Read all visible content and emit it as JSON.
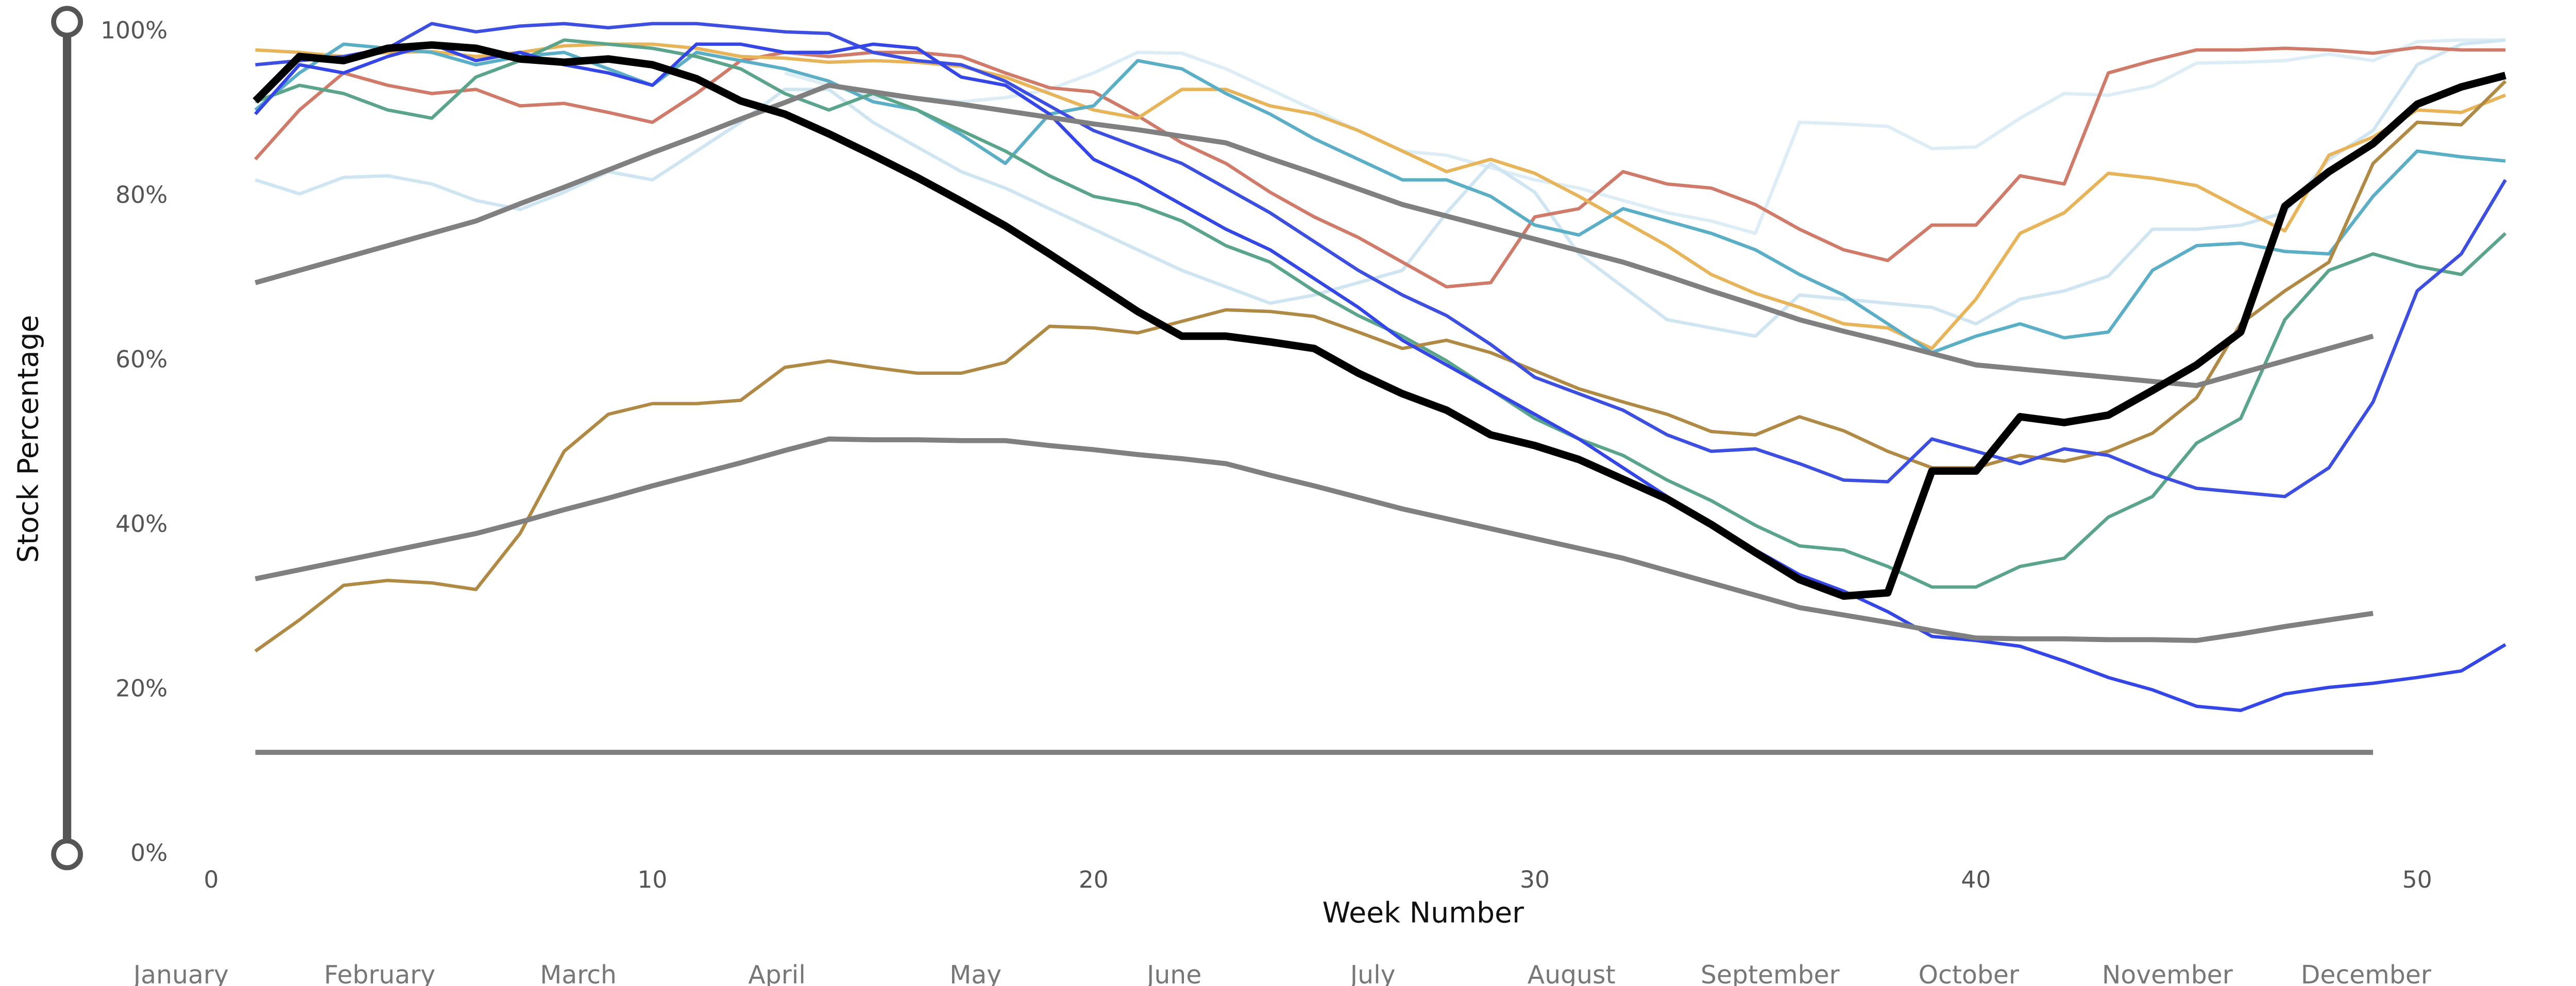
{
  "chart_data": {
    "type": "line",
    "x_axis_label": "Week Number",
    "y_axis_label": "Stock Percentage",
    "month_labels": [
      "January",
      "February",
      "March",
      "April",
      "May",
      "June",
      "July",
      "August",
      "September",
      "October",
      "November",
      "December"
    ],
    "xlim": [
      0,
      53
    ],
    "ylim": [
      0,
      100
    ],
    "xticks": [
      0,
      10,
      20,
      30,
      40,
      50
    ],
    "yticks": [
      {
        "value": 0,
        "label": "0%"
      },
      {
        "value": 20,
        "label": "20%"
      },
      {
        "value": 40,
        "label": "40%"
      },
      {
        "value": 60,
        "label": "60%"
      },
      {
        "value": 80,
        "label": "80%"
      },
      {
        "value": 100,
        "label": "100%"
      }
    ],
    "grid": false,
    "x": [
      1,
      2,
      3,
      4,
      5,
      6,
      7,
      8,
      9,
      10,
      11,
      12,
      13,
      14,
      15,
      16,
      17,
      18,
      19,
      20,
      21,
      22,
      23,
      24,
      25,
      26,
      27,
      28,
      29,
      30,
      31,
      32,
      33,
      34,
      35,
      36,
      37,
      38,
      39,
      40,
      41,
      42,
      43,
      44,
      45,
      46,
      47,
      48,
      49,
      50,
      51,
      52
    ],
    "series": [
      {
        "color": "#dcedf6",
        "width": 2,
        "values": [
          null,
          null,
          null,
          null,
          null,
          null,
          null,
          null,
          null,
          null,
          null,
          null,
          95,
          93.5,
          92,
          92,
          91.5,
          92,
          93,
          95,
          97.5,
          97.4,
          95.5,
          93,
          90.5,
          88,
          85.5,
          85,
          83.5,
          82,
          81,
          79.5,
          78,
          77,
          75.5,
          89,
          88.8,
          88.5,
          85.8,
          86,
          89.5,
          92.5,
          92.3,
          93.4,
          96.2,
          96.3,
          96.5,
          97.3,
          96.5,
          98.8,
          99,
          99
        ]
      },
      {
        "color": "#cfe6f2",
        "width": 2,
        "values": [
          82,
          80.3,
          82.3,
          82.5,
          81.5,
          79.5,
          78.4,
          80.5,
          83,
          82,
          85.5,
          89,
          93,
          93,
          89,
          86,
          83,
          81,
          78.5,
          76,
          73.5,
          71,
          69,
          67,
          68,
          69.5,
          71,
          78,
          84,
          80.5,
          73,
          69,
          65,
          64,
          63,
          68,
          67.5,
          67,
          66.5,
          64.5,
          67.5,
          68.5,
          70.3,
          76,
          76,
          76.5,
          78,
          84.5,
          88,
          96,
          98.5,
          99
        ]
      },
      {
        "color": "#d07a6a",
        "width": 2,
        "values": [
          84.5,
          90.5,
          95,
          93.5,
          92.5,
          93,
          91,
          91.3,
          90.2,
          89,
          92.5,
          96.5,
          97.5,
          97,
          97.5,
          97.5,
          97,
          95,
          93.2,
          92.7,
          89.8,
          86.5,
          84,
          80.5,
          77.5,
          75,
          72,
          69,
          69.5,
          77.5,
          78.5,
          83,
          81.5,
          81,
          79,
          76,
          73.5,
          72.2,
          76.5,
          76.5,
          82.5,
          81.5,
          95,
          96.5,
          97.8,
          97.8,
          98,
          97.8,
          97.4,
          98.1,
          97.8,
          97.8
        ]
      },
      {
        "color": "#e7b45a",
        "width": 2,
        "values": [
          97.8,
          97.5,
          97,
          97.5,
          97.6,
          97,
          97.5,
          98.3,
          98.5,
          98.5,
          98,
          97,
          96.8,
          96.3,
          96.5,
          96.3,
          95.8,
          94.5,
          92.5,
          90.5,
          89.5,
          93,
          93,
          91,
          90,
          88,
          85.5,
          83,
          84.5,
          82.8,
          80,
          77,
          74,
          70.5,
          68.2,
          66.5,
          64.5,
          64,
          61.5,
          67.5,
          75.5,
          78,
          82.8,
          82.2,
          81.3,
          78.5,
          75.8,
          85,
          87.2,
          90.5,
          90.2,
          92.3
        ]
      },
      {
        "color": "#5aaec6",
        "width": 2,
        "values": [
          90.5,
          95,
          98.5,
          98,
          97.5,
          96,
          97,
          97.5,
          95.5,
          93.5,
          97.5,
          96.5,
          95.5,
          94,
          91.5,
          90.5,
          87.5,
          84,
          90,
          91,
          96.5,
          95.5,
          92.5,
          90,
          87,
          84.5,
          82,
          82,
          80,
          76.5,
          75.3,
          78.5,
          77,
          75.5,
          73.5,
          70.5,
          68,
          64.5,
          61,
          63,
          64.5,
          62.8,
          63.5,
          71,
          74,
          74.3,
          73.3,
          73,
          80,
          85.5,
          84.8,
          84.3
        ]
      },
      {
        "color": "#5aa58a",
        "width": 2,
        "values": [
          91.5,
          93.5,
          92.5,
          90.5,
          89.5,
          94.5,
          96.5,
          99,
          98.5,
          98,
          97,
          95.5,
          92.5,
          90.5,
          92.5,
          90.5,
          88,
          85.5,
          82.5,
          80,
          79,
          77,
          74,
          72,
          68.5,
          65.5,
          63,
          60,
          56.5,
          53,
          50.5,
          48.5,
          45.5,
          43,
          40,
          37.5,
          37,
          35,
          32.5,
          32.5,
          35,
          36,
          41,
          43.5,
          50,
          53,
          65,
          71,
          73,
          71.5,
          70.5,
          75.5
        ]
      },
      {
        "color": "#b08a45",
        "width": 2,
        "values": [
          24.7,
          28.5,
          32.7,
          33.3,
          33,
          32.2,
          39,
          49,
          53.5,
          54.8,
          54.8,
          55.2,
          59.2,
          60,
          59.2,
          58.5,
          58.5,
          59.8,
          64.2,
          64,
          63.4,
          64.8,
          66.2,
          66,
          65.4,
          63.5,
          61.5,
          62.5,
          61,
          58.8,
          56.6,
          55,
          53.5,
          51.4,
          51,
          53.2,
          51.5,
          49,
          47,
          47,
          48.5,
          47.8,
          49,
          51.2,
          55.5,
          64.5,
          68.5,
          72,
          84,
          89,
          88.7,
          94
        ]
      },
      {
        "color": "#3d4fe0",
        "width": 2,
        "values": [
          96,
          96.5,
          97,
          98,
          101,
          100,
          100.7,
          101,
          100.5,
          101,
          101,
          100.5,
          100,
          99.8,
          97.5,
          96.5,
          96,
          94,
          91,
          88,
          86,
          84,
          81,
          78,
          74.5,
          71,
          68,
          65.5,
          62,
          58,
          56,
          54,
          51,
          49,
          49.3,
          47.5,
          45.5,
          45.3,
          50.5,
          49,
          47.5,
          49.3,
          48.5,
          46.3,
          44.5,
          44,
          43.5,
          47,
          55,
          68.5,
          73,
          82
        ]
      },
      {
        "color": "#3447e6",
        "width": 2,
        "values": [
          90,
          96,
          95,
          97,
          98.5,
          96.5,
          97.5,
          96,
          95,
          93.5,
          98.5,
          98.5,
          97.5,
          97.5,
          98.5,
          98,
          94.5,
          93.5,
          90,
          84.5,
          82,
          79,
          76,
          73.5,
          70,
          66.5,
          62.5,
          59.5,
          56.5,
          53.5,
          50.5,
          47,
          43.5,
          40,
          37,
          34,
          32,
          29.5,
          26.5,
          26,
          25.3,
          23.5,
          21.5,
          20,
          18,
          17.5,
          19.5,
          20.3,
          20.8,
          21.5,
          22.3,
          25.5
        ]
      },
      {
        "color": "#808080",
        "width": 3,
        "values": [
          69.5,
          71,
          72.5,
          74,
          75.5,
          77,
          79.1,
          81.1,
          83.2,
          85.3,
          87.3,
          89.4,
          91.4,
          93.5,
          92.7,
          91.9,
          91.2,
          90.4,
          89.6,
          88.8,
          88.1,
          87.3,
          86.5,
          84.6,
          82.8,
          80.9,
          79,
          77.6,
          76.2,
          74.8,
          73.4,
          72,
          70.3,
          68.5,
          66.8,
          65,
          63.6,
          62.3,
          60.9,
          59.5,
          59,
          58.5,
          58,
          57.5,
          57,
          58.5,
          60,
          61.5,
          63,
          null,
          null,
          null
        ]
      },
      {
        "color": "#808080",
        "width": 3,
        "values": [
          33.5,
          34.6,
          35.7,
          36.8,
          37.9,
          39,
          40.4,
          41.9,
          43.3,
          44.8,
          46.2,
          47.6,
          49.1,
          50.5,
          50.4,
          50.4,
          50.3,
          50.3,
          49.7,
          49.2,
          48.6,
          48.1,
          47.5,
          46.1,
          44.8,
          43.4,
          42,
          40.8,
          39.6,
          38.4,
          37.2,
          36,
          34.5,
          33,
          31.5,
          30,
          29.1,
          28.2,
          27.2,
          26.3,
          26.2,
          26.2,
          26.1,
          26.1,
          26,
          26.8,
          27.7,
          28.5,
          29.3,
          null,
          null,
          null
        ]
      },
      {
        "color": "#808080",
        "width": 3,
        "values": [
          12.4,
          12.4,
          12.4,
          12.4,
          12.4,
          12.4,
          12.4,
          12.4,
          12.4,
          12.4,
          12.4,
          12.4,
          12.4,
          12.4,
          12.4,
          12.4,
          12.4,
          12.4,
          12.4,
          12.4,
          12.4,
          12.4,
          12.4,
          12.4,
          12.4,
          12.4,
          12.4,
          12.4,
          12.4,
          12.4,
          12.4,
          12.4,
          12.4,
          12.4,
          12.4,
          12.4,
          12.4,
          12.4,
          12.4,
          12.4,
          12.4,
          12.4,
          12.4,
          12.4,
          12.4,
          12.4,
          12.4,
          12.4,
          12.4,
          null,
          null,
          null
        ]
      },
      {
        "color": "#000000",
        "width": 4.5,
        "values": [
          91.6,
          97,
          96.5,
          98,
          98.4,
          98,
          96.7,
          96.3,
          96.7,
          96,
          94.3,
          91.6,
          90,
          87.6,
          85,
          82.3,
          79.4,
          76.4,
          73,
          69.5,
          66,
          63,
          63,
          62.3,
          61.5,
          58.5,
          56,
          54,
          51,
          49.7,
          48,
          45.6,
          43.2,
          40.1,
          36.7,
          33.4,
          31.4,
          31.8,
          46.6,
          46.6,
          53.2,
          52.5,
          53.4,
          56.4,
          59.5,
          63.5,
          78.8,
          83,
          86.4,
          91.2,
          93.3,
          94.7
        ]
      }
    ]
  }
}
